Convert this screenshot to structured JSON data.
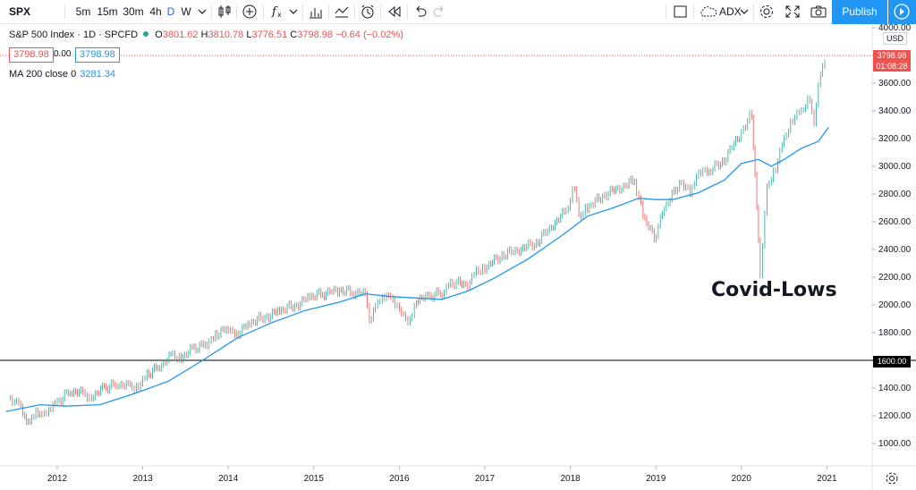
{
  "toolbar": {
    "symbol": "SPX",
    "intervals": [
      "5m",
      "15m",
      "30m",
      "4h",
      "D",
      "W"
    ],
    "active_interval": "D",
    "compare": "ADX",
    "publish": "Publish"
  },
  "legend": {
    "title": "S&P 500 Index · 1D · SPCFD",
    "open_label": "O",
    "open": "3801.62",
    "high_label": "H",
    "high": "3810.78",
    "low_label": "L",
    "low": "3776.51",
    "close_label": "C",
    "close": "3798.98",
    "change": "−0.64 (−0.02%)",
    "bid": "3798.98",
    "spread": "0.00",
    "ask": "3798.98",
    "ma_label": "MA 200 close 0",
    "ma_value": "3281.34"
  },
  "price_axis": {
    "currency": "USD",
    "last_price": "3798.98",
    "countdown": "01:08:28",
    "hline_label": "1600.00"
  },
  "annotation": "Covid-Lows",
  "colors": {
    "up": "#26a69a",
    "down": "#ef5350",
    "ma": "#2196f3",
    "accent": "#2962ff",
    "publish": "#2196f3",
    "hline": "#000000"
  },
  "chart_data": {
    "type": "line",
    "title": "S&P 500 Index · 1D · SPCFD",
    "ylim": [
      900,
      4000
    ],
    "y_ticks": [
      1000,
      1200,
      1400,
      1600,
      1800,
      2000,
      2200,
      2400,
      2600,
      2800,
      3000,
      3200,
      3400,
      3600,
      3800,
      4000
    ],
    "x_tick_labels": [
      "2012",
      "2013",
      "2014",
      "2015",
      "2016",
      "2017",
      "2018",
      "2019",
      "2020",
      "2021"
    ],
    "horizontal_line": 1600,
    "series": [
      {
        "name": "S&P 500",
        "x": [
          2011.45,
          2011.55,
          2011.62,
          2011.68,
          2011.75,
          2011.82,
          2011.9,
          2012.0,
          2012.15,
          2012.3,
          2012.4,
          2012.55,
          2012.7,
          2012.85,
          2012.95,
          2013.05,
          2013.2,
          2013.35,
          2013.45,
          2013.6,
          2013.75,
          2013.85,
          2014.0,
          2014.1,
          2014.25,
          2014.45,
          2014.6,
          2014.8,
          2014.95,
          2015.1,
          2015.3,
          2015.45,
          2015.6,
          2015.65,
          2015.72,
          2015.8,
          2015.9,
          2016.0,
          2016.1,
          2016.2,
          2016.35,
          2016.5,
          2016.6,
          2016.8,
          2016.9,
          2017.0,
          2017.2,
          2017.4,
          2017.6,
          2017.8,
          2017.95,
          2018.05,
          2018.1,
          2018.2,
          2018.4,
          2018.6,
          2018.75,
          2018.85,
          2018.98,
          2019.1,
          2019.3,
          2019.4,
          2019.5,
          2019.6,
          2019.8,
          2020.0,
          2020.12,
          2020.18,
          2020.22,
          2020.3,
          2020.4,
          2020.5,
          2020.6,
          2020.7,
          2020.8,
          2020.85,
          2020.9,
          2021.0
        ],
        "values": [
          1330,
          1290,
          1200,
          1150,
          1250,
          1200,
          1260,
          1300,
          1380,
          1360,
          1340,
          1400,
          1430,
          1410,
          1420,
          1500,
          1560,
          1640,
          1620,
          1690,
          1720,
          1790,
          1830,
          1790,
          1870,
          1920,
          1960,
          2000,
          2060,
          2080,
          2110,
          2090,
          2080,
          1900,
          1990,
          2080,
          2050,
          1990,
          1860,
          2040,
          2060,
          2090,
          2160,
          2150,
          2250,
          2270,
          2360,
          2400,
          2450,
          2580,
          2680,
          2860,
          2650,
          2700,
          2800,
          2850,
          2900,
          2650,
          2480,
          2700,
          2900,
          2800,
          2980,
          2950,
          3050,
          3250,
          3380,
          2700,
          2240,
          2850,
          3000,
          3200,
          3350,
          3400,
          3500,
          3300,
          3620,
          3800
        ]
      },
      {
        "name": "MA 200 close 0",
        "x": [
          2011.4,
          2011.8,
          2012.1,
          2012.5,
          2012.9,
          2013.3,
          2013.7,
          2014.1,
          2014.5,
          2014.9,
          2015.3,
          2015.6,
          2015.9,
          2016.2,
          2016.5,
          2016.8,
          2017.1,
          2017.5,
          2017.9,
          2018.2,
          2018.5,
          2018.8,
          2019.0,
          2019.2,
          2019.5,
          2019.8,
          2020.0,
          2020.2,
          2020.35,
          2020.5,
          2020.7,
          2020.9,
          2021.02
        ],
        "values": [
          1230,
          1280,
          1270,
          1280,
          1360,
          1450,
          1600,
          1760,
          1870,
          1960,
          2020,
          2080,
          2060,
          2050,
          2040,
          2100,
          2190,
          2330,
          2500,
          2640,
          2700,
          2770,
          2760,
          2760,
          2810,
          2900,
          3020,
          3050,
          3000,
          3050,
          3130,
          3180,
          3281
        ]
      }
    ]
  }
}
